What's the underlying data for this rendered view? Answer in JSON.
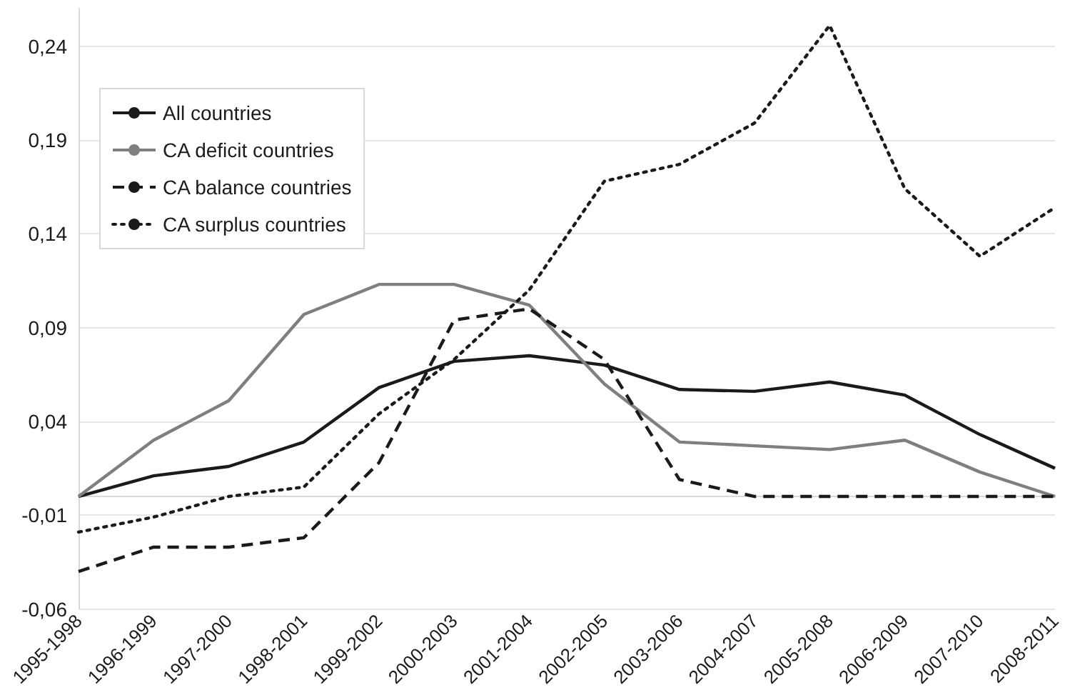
{
  "chart_data": {
    "type": "line",
    "categories": [
      "1995-1998",
      "1996-1999",
      "1997-2000",
      "1998-2001",
      "1999-2002",
      "2000-2003",
      "2001-2004",
      "2002-2005",
      "2003-2006",
      "2004-2007",
      "2005-2008",
      "2006-2009",
      "2007-2010",
      "2008-2011"
    ],
    "series": [
      {
        "name": "All countries",
        "color": "#1a1a1a",
        "line_style": "solid",
        "values": [
          0,
          0.011,
          0.016,
          0.029,
          0.058,
          0.072,
          0.075,
          0.07,
          0.057,
          0.056,
          0.061,
          0.054,
          0.033,
          0.015
        ]
      },
      {
        "name": "CA deficit countries",
        "color": "#7f7f7f",
        "line_style": "solid",
        "values": [
          0,
          0.03,
          0.051,
          0.097,
          0.113,
          0.113,
          0.102,
          0.06,
          0.029,
          0.027,
          0.025,
          0.03,
          0.013,
          0
        ]
      },
      {
        "name": "CA balance countries",
        "color": "#1a1a1a",
        "line_style": "dashed",
        "values": [
          -0.04,
          -0.027,
          -0.027,
          -0.022,
          0.018,
          0.094,
          0.1,
          0.073,
          0.009,
          0,
          0,
          0,
          0,
          0
        ]
      },
      {
        "name": "CA surplus countries",
        "color": "#1a1a1a",
        "line_style": "dotted",
        "values": [
          -0.019,
          -0.011,
          0,
          0.005,
          0.044,
          0.073,
          0.11,
          0.168,
          0.177,
          0.199,
          0.251,
          0.164,
          0.128,
          0.154
        ]
      }
    ],
    "ylim": [
      -0.06,
      0.26
    ],
    "yticks": [
      {
        "value": -0.06,
        "label": "-0,06"
      },
      {
        "value": -0.01,
        "label": "-0,01"
      },
      {
        "value": 0.04,
        "label": "0,04"
      },
      {
        "value": 0.09,
        "label": "0,09"
      },
      {
        "value": 0.14,
        "label": "0,14"
      },
      {
        "value": 0.19,
        "label": "0,19"
      },
      {
        "value": 0.24,
        "label": "0,24"
      }
    ],
    "grid": "y",
    "legend": "top left",
    "marker": "none"
  }
}
